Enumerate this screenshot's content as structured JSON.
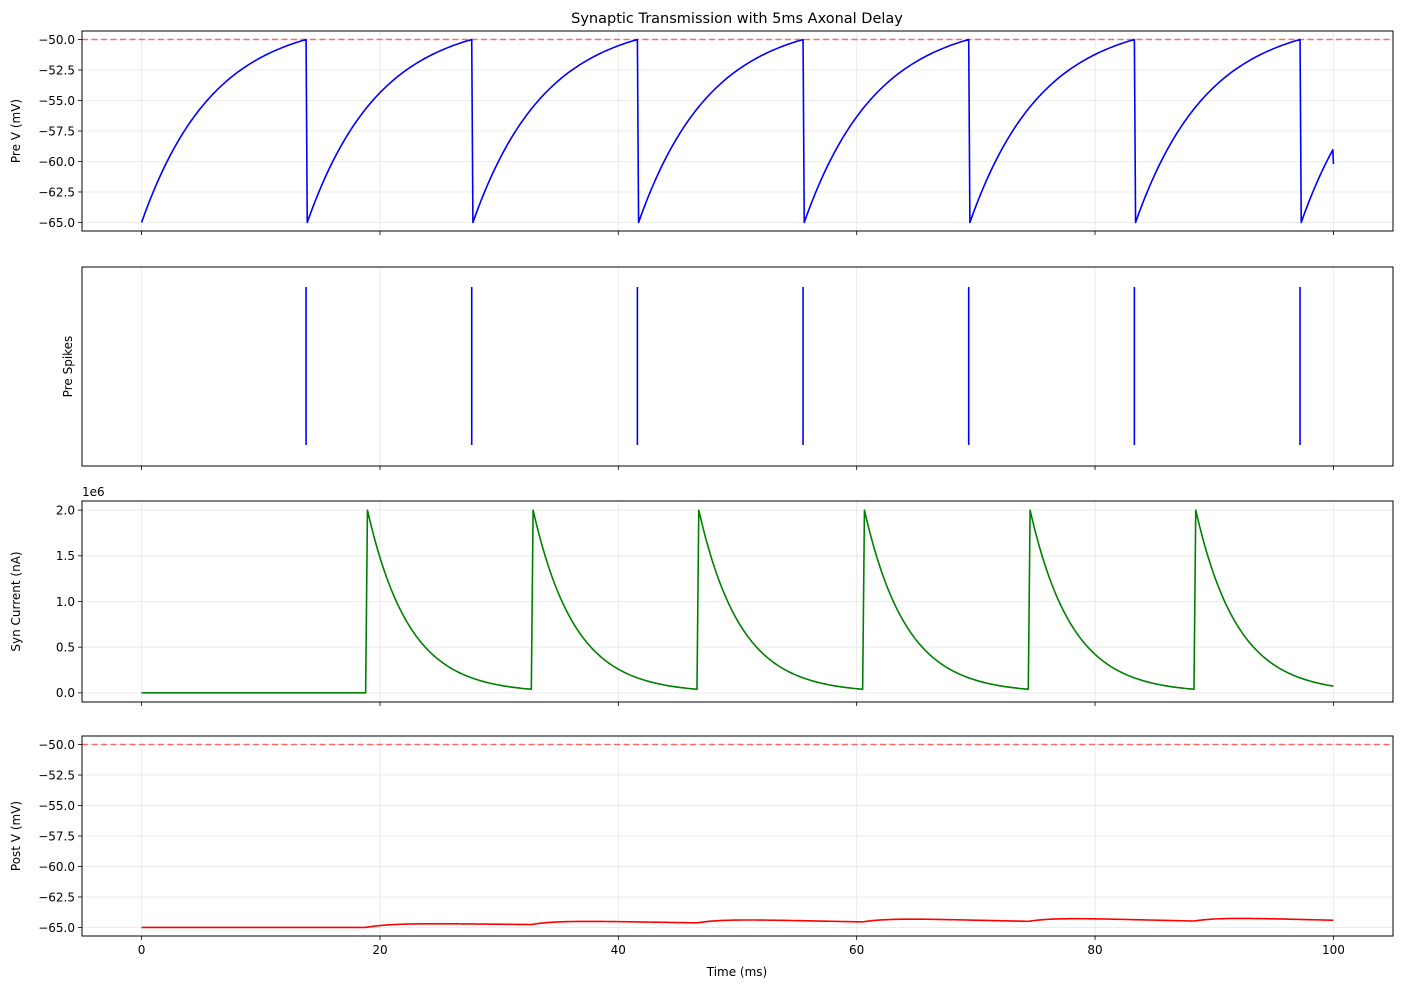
{
  "chart_data": {
    "title": "Synaptic Transmission with 5ms Axonal Delay",
    "xlabel": "Time (ms)",
    "xlim": [
      -5,
      105
    ],
    "xticks": [
      0,
      20,
      40,
      60,
      80,
      100
    ],
    "grid": true,
    "panels": [
      {
        "id": "pre-v",
        "type": "line",
        "ylabel": "Pre V (mV)",
        "ylim": [
          -65.7,
          -49.3
        ],
        "yticks": [
          -65.0,
          -62.5,
          -60.0,
          -57.5,
          -55.0,
          -52.5,
          -50.0
        ],
        "ytick_labels": [
          "−65.0",
          "−62.5",
          "−60.0",
          "−57.5",
          "−55.0",
          "−52.5",
          "−50.0"
        ],
        "threshold": -50,
        "threshold_color": "#ff0000",
        "series_color": "#0000ff",
        "model": {
          "kind": "lif",
          "v_reset": -65,
          "v_threshold": -50,
          "spike_times": [
            13.8,
            27.7,
            41.6,
            55.5,
            69.4,
            83.3,
            97.2
          ],
          "end": {
            "x": 100,
            "y": -60.2
          }
        }
      },
      {
        "id": "pre-spikes",
        "type": "eventplot",
        "ylabel": "Pre Spikes",
        "series_color": "#0000ff",
        "events": [
          13.8,
          27.7,
          41.6,
          55.5,
          69.4,
          83.3,
          97.2
        ]
      },
      {
        "id": "syn-current",
        "type": "line",
        "ylabel": "Syn Current (nA)",
        "offset_text": "1e6",
        "ylim": [
          -0.1,
          2.1
        ],
        "yticks": [
          0.0,
          0.5,
          1.0,
          1.5,
          2.0
        ],
        "ytick_labels": [
          "0.0",
          "0.5",
          "1.0",
          "1.5",
          "2.0"
        ],
        "series_color": "#008000",
        "model": {
          "kind": "exp_decay",
          "onsets": [
            18.8,
            32.7,
            46.6,
            60.5,
            74.4,
            88.3
          ],
          "peak": 2.0,
          "tau": 3.5,
          "end": 100
        }
      },
      {
        "id": "post-v",
        "type": "line",
        "ylabel": "Post V (mV)",
        "ylim": [
          -65.7,
          -49.3
        ],
        "yticks": [
          -65.0,
          -62.5,
          -60.0,
          -57.5,
          -55.0,
          -52.5,
          -50.0
        ],
        "ytick_labels": [
          "−65.0",
          "−62.5",
          "−60.0",
          "−57.5",
          "−55.0",
          "−52.5",
          "−50.0"
        ],
        "threshold": -50,
        "threshold_color": "#ff0000",
        "series_color": "#ff0000",
        "model": {
          "kind": "psp",
          "baseline": -65,
          "onsets": [
            18.8,
            32.7,
            46.6,
            60.5,
            74.4,
            88.3
          ],
          "end": 100
        }
      }
    ],
    "xtick_labels": [
      "0",
      "20",
      "40",
      "60",
      "80",
      "100"
    ]
  }
}
